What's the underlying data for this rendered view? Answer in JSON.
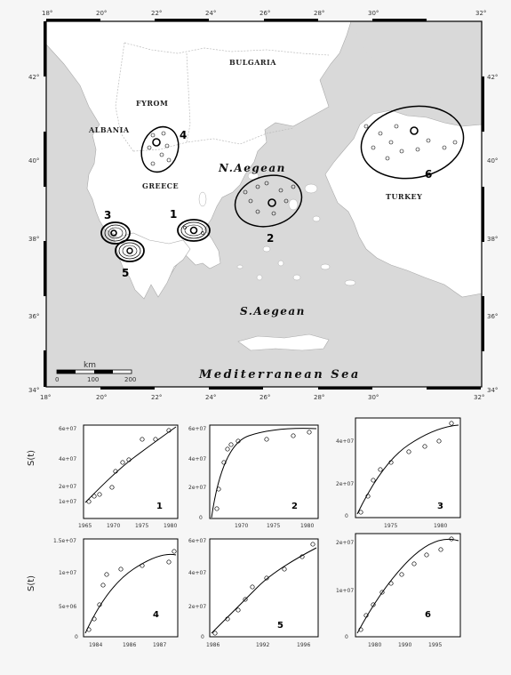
{
  "map": {
    "lon_ticks": [
      "18°",
      "20°",
      "22°",
      "24°",
      "26°",
      "28°",
      "30°",
      "32°"
    ],
    "lat_ticks": [
      "34°",
      "36°",
      "38°",
      "40°",
      "42°"
    ],
    "countries": {
      "bulgaria": "BULGARIA",
      "fyrom": "FYROM",
      "albania": "ALBANIA",
      "greece": "GREECE",
      "turkey": "TURKEY"
    },
    "seas": {
      "n_aegean": "N.Aegean",
      "s_aegean": "S.Aegean",
      "med": "Mediterranean Sea"
    },
    "clusters": [
      "1",
      "2",
      "3",
      "4",
      "5",
      "6"
    ],
    "scale": {
      "unit": "km",
      "ticks": [
        "0",
        "100",
        "200"
      ]
    },
    "colors": {
      "land": "#ffffff",
      "sea": "#d9d9d9",
      "border": "#999999"
    }
  },
  "panels": [
    {
      "id": "1",
      "ylabels": [
        "1e+07",
        "2e+07",
        "4e+07",
        "6e+07"
      ],
      "xlabels": [
        "1965",
        "1970",
        "1975",
        "1980"
      ]
    },
    {
      "id": "2",
      "ylabels": [
        "0",
        "2e+07",
        "4e+07",
        "6e+07"
      ],
      "xlabels": [
        "1970",
        "1975",
        "1980"
      ]
    },
    {
      "id": "3",
      "ylabels": [
        "0",
        "2e+07",
        "4e+07"
      ],
      "xlabels": [
        "1975",
        "1980"
      ]
    },
    {
      "id": "4",
      "ylabels": [
        "0",
        "5e+06",
        "1e+07",
        "1.5e+07"
      ],
      "xlabels": [
        "1984",
        "1986",
        "1987"
      ]
    },
    {
      "id": "5",
      "ylabels": [
        "0",
        "2e+07",
        "4e+07",
        "6e+07"
      ],
      "xlabels": [
        "1986",
        "1992",
        "1996"
      ]
    },
    {
      "id": "6",
      "ylabels": [
        "0",
        "1e+07",
        "2e+07"
      ],
      "xlabels": [
        "1980",
        "1990",
        "1995"
      ]
    }
  ],
  "ylabel_text": "S(t)"
}
